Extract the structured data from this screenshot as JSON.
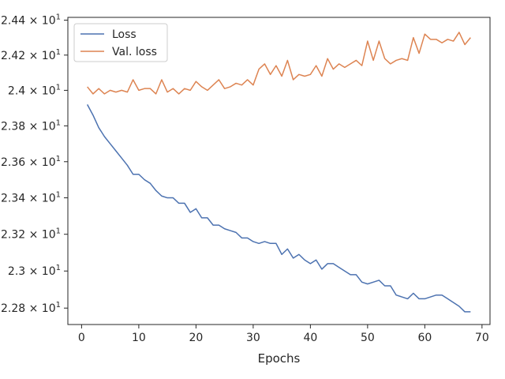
{
  "chart_data": {
    "type": "line",
    "title": "",
    "xlabel": "Epochs",
    "ylabel": "",
    "xlim": [
      -2.4,
      71.4
    ],
    "ylim": [
      22.712,
      24.416
    ],
    "x_ticks": [
      0,
      10,
      20,
      30,
      40,
      50,
      60,
      70
    ],
    "x_tick_labels": [
      "0",
      "10",
      "20",
      "30",
      "40",
      "50",
      "60",
      "70"
    ],
    "y_ticks": [
      22.8,
      23.0,
      23.2,
      23.4,
      23.6,
      23.8,
      24.0,
      24.2,
      24.4
    ],
    "y_tick_labels": [
      {
        "base": "2.28",
        "exp": "1"
      },
      {
        "base": "2.3",
        "exp": "1"
      },
      {
        "base": "2.32",
        "exp": "1"
      },
      {
        "base": "2.34",
        "exp": "1"
      },
      {
        "base": "2.36",
        "exp": "1"
      },
      {
        "base": "2.38",
        "exp": "1"
      },
      {
        "base": "2.4",
        "exp": "1"
      },
      {
        "base": "2.42",
        "exp": "1"
      },
      {
        "base": "2.44",
        "exp": "1"
      }
    ],
    "y_scale": "log",
    "grid": false,
    "legend": {
      "placement": "top-left",
      "entries": [
        "Loss",
        "Val. loss"
      ]
    },
    "x": [
      1,
      2,
      3,
      4,
      5,
      6,
      7,
      8,
      9,
      10,
      11,
      12,
      13,
      14,
      15,
      16,
      17,
      18,
      19,
      20,
      21,
      22,
      23,
      24,
      25,
      26,
      27,
      28,
      29,
      30,
      31,
      32,
      33,
      34,
      35,
      36,
      37,
      38,
      39,
      40,
      41,
      42,
      43,
      44,
      45,
      46,
      47,
      48,
      49,
      50,
      51,
      52,
      53,
      54,
      55,
      56,
      57,
      58,
      59,
      60,
      61,
      62,
      63,
      64,
      65,
      66,
      67,
      68
    ],
    "series": [
      {
        "name": "Loss",
        "color": "#4c72b0",
        "values": [
          23.92,
          23.86,
          23.79,
          23.74,
          23.7,
          23.66,
          23.62,
          23.58,
          23.53,
          23.53,
          23.5,
          23.48,
          23.44,
          23.41,
          23.4,
          23.4,
          23.37,
          23.37,
          23.32,
          23.34,
          23.29,
          23.29,
          23.25,
          23.25,
          23.23,
          23.22,
          23.21,
          23.18,
          23.18,
          23.16,
          23.15,
          23.16,
          23.15,
          23.15,
          23.09,
          23.12,
          23.07,
          23.09,
          23.06,
          23.04,
          23.06,
          23.01,
          23.04,
          23.04,
          23.02,
          23.0,
          22.98,
          22.98,
          22.94,
          22.93,
          22.94,
          22.95,
          22.92,
          22.92,
          22.87,
          22.86,
          22.85,
          22.88,
          22.85,
          22.85,
          22.86,
          22.87,
          22.87,
          22.85,
          22.83,
          22.81,
          22.78,
          22.78
        ]
      },
      {
        "name": "Val. loss",
        "color": "#dd8452",
        "values": [
          24.02,
          23.98,
          24.01,
          23.98,
          24.0,
          23.99,
          24.0,
          23.99,
          24.06,
          24.0,
          24.01,
          24.01,
          23.98,
          24.06,
          23.99,
          24.01,
          23.98,
          24.01,
          24.0,
          24.05,
          24.02,
          24.0,
          24.03,
          24.06,
          24.01,
          24.02,
          24.04,
          24.03,
          24.06,
          24.03,
          24.12,
          24.15,
          24.09,
          24.14,
          24.08,
          24.17,
          24.06,
          24.09,
          24.08,
          24.09,
          24.14,
          24.08,
          24.18,
          24.12,
          24.15,
          24.13,
          24.15,
          24.17,
          24.14,
          24.28,
          24.17,
          24.28,
          24.18,
          24.15,
          24.17,
          24.18,
          24.17,
          24.3,
          24.21,
          24.32,
          24.29,
          24.29,
          24.27,
          24.29,
          24.28,
          24.33,
          24.26,
          24.3
        ]
      }
    ]
  }
}
